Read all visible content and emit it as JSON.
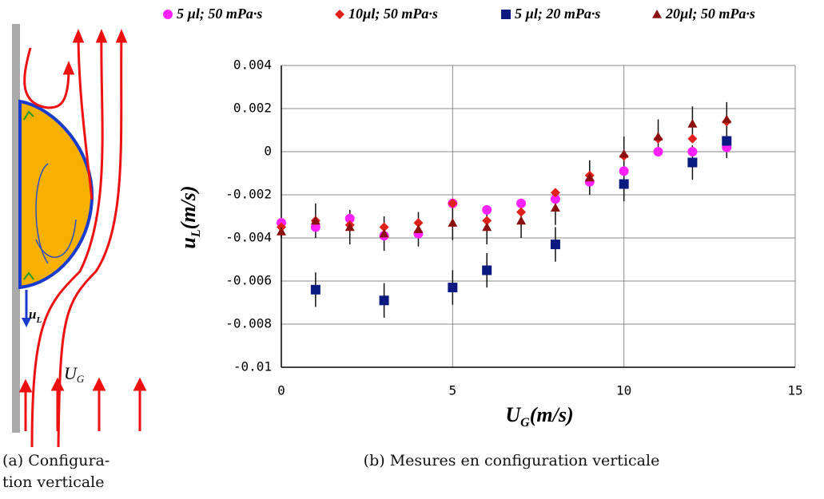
{
  "chart_data": {
    "type": "scatter",
    "ylabel": {
      "main": "u",
      "sub": "L",
      "unit": "(m/s)"
    },
    "xlabel": {
      "main": "U",
      "sub": "G",
      "unit": "(m/s)"
    },
    "xlim": [
      0,
      15
    ],
    "xticks": [
      0,
      5,
      10,
      15
    ],
    "ylim": [
      -0.01,
      0.004
    ],
    "yticks": [
      0.004,
      0.002,
      0,
      -0.002,
      -0.004,
      -0.006,
      -0.008,
      -0.01
    ],
    "grid": true,
    "legend": "top",
    "series": [
      {
        "name": "5 µl; 50 mPa·s",
        "color": "#ff22ff",
        "marker": "circle",
        "x": [
          0,
          1,
          2,
          3,
          4,
          5,
          6,
          7,
          8,
          9,
          10,
          11,
          12,
          13
        ],
        "values": [
          -0.0033,
          -0.0035,
          -0.0031,
          -0.0039,
          -0.0038,
          -0.0024,
          -0.0027,
          -0.0024,
          -0.0022,
          -0.0014,
          -0.0009,
          0,
          0,
          0.0002
        ]
      },
      {
        "name": "10µl; 50 mPa·s",
        "color": "#e0201a",
        "marker": "diamond",
        "x": [
          0,
          1,
          2,
          3,
          4,
          5,
          6,
          7,
          8,
          9,
          10,
          11,
          12,
          13
        ],
        "values": [
          -0.0035,
          -0.0032,
          -0.0034,
          -0.0035,
          -0.0033,
          -0.0024,
          -0.0032,
          -0.0028,
          -0.0019,
          -0.0011,
          -0.0002,
          0.0006,
          0.0006,
          0.0014
        ]
      },
      {
        "name": "5 µl; 20 mPa·s",
        "color": "#0a1a80",
        "marker": "square",
        "x": [
          1,
          3,
          5,
          6,
          8,
          10,
          12,
          13
        ],
        "values": [
          -0.0064,
          -0.0069,
          -0.0063,
          -0.0055,
          -0.0043,
          -0.0015,
          -0.0005,
          0.0005
        ],
        "errors": [
          0.0008,
          0.0008,
          0.0008,
          0.0008,
          0.0008,
          0.0008,
          0.0008,
          0.0008
        ]
      },
      {
        "name": "20µl; 50 mPa·s",
        "color": "#8b1010",
        "marker": "triangle",
        "x": [
          0,
          1,
          2,
          3,
          4,
          5,
          6,
          7,
          8,
          9,
          10,
          11,
          12,
          13
        ],
        "values": [
          -0.0037,
          -0.0032,
          -0.0035,
          -0.0038,
          -0.0036,
          -0.0033,
          -0.0035,
          -0.0032,
          -0.0026,
          -0.0012,
          -0.0001,
          0.0007,
          0.0013,
          0.0015
        ],
        "errors": [
          0.0003,
          0.0008,
          0.0008,
          0.0008,
          0.0008,
          0.0008,
          0.0008,
          0.0008,
          0.0008,
          0.0008,
          0.0008,
          0.0008,
          0.0008,
          0.0008
        ]
      }
    ]
  },
  "diagram": {
    "droplet_velocity": {
      "main": "u",
      "sub": "L"
    },
    "gas_velocity": {
      "main": "U",
      "sub": "G"
    }
  },
  "captions": {
    "a": [
      "(a)  Configura-",
      "tion verticale"
    ],
    "b": "(b) Mesures en configuration verticale"
  }
}
